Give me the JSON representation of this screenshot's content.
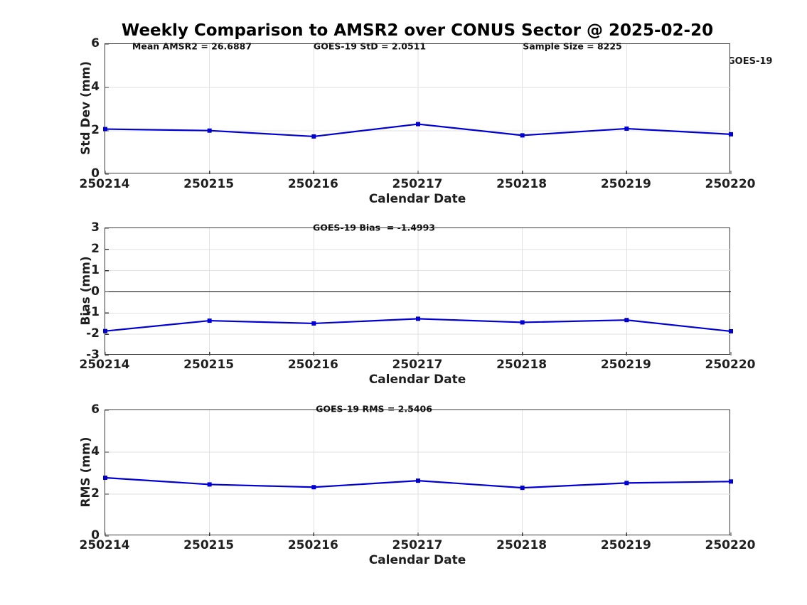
{
  "title": "Weekly Comparison to AMSR2 over CONUS Sector @ 2025-02-20",
  "legend": {
    "label": "GOES-19"
  },
  "colors": {
    "line": "#0000d2",
    "grid": "#e2e2e2",
    "axis": "#3a3a3a",
    "zero_line": "#000000",
    "text": "#1f1f1f"
  },
  "chart_data": [
    {
      "type": "line",
      "title": "",
      "annotations": [
        "Mean AMSR2 = 26.6887",
        "GOES-19 StD = 2.0511",
        "Sample Size = 8225"
      ],
      "xlabel": "Calendar Date",
      "ylabel": "Std Dev (mm)",
      "categories": [
        "250214",
        "250215",
        "250216",
        "250217",
        "250218",
        "250219",
        "250220"
      ],
      "series": [
        {
          "name": "GOES-19",
          "values": [
            2.08,
            2.01,
            1.74,
            2.31,
            1.79,
            2.1,
            1.84
          ]
        }
      ],
      "ylim": [
        0,
        6
      ],
      "yticks": [
        0,
        2,
        4,
        6
      ],
      "grid": true,
      "zero_line": false,
      "legend_position": "top-right",
      "marker": "square"
    },
    {
      "type": "line",
      "title": "",
      "annotations": [
        "GOES-19 Bias  = -1.4993"
      ],
      "xlabel": "Calendar Date",
      "ylabel": "Bias (mm)",
      "categories": [
        "250214",
        "250215",
        "250216",
        "250217",
        "250218",
        "250219",
        "250220"
      ],
      "series": [
        {
          "name": "GOES-19",
          "values": [
            -1.85,
            -1.36,
            -1.49,
            -1.27,
            -1.44,
            -1.33,
            -1.86
          ]
        }
      ],
      "ylim": [
        -3,
        3
      ],
      "yticks": [
        -3,
        -2,
        -1,
        0,
        1,
        2,
        3
      ],
      "grid": true,
      "zero_line": true,
      "marker": "square"
    },
    {
      "type": "line",
      "title": "",
      "annotations": [
        "GOES-19 RMS = 2.5406"
      ],
      "xlabel": "Calendar Date",
      "ylabel": "RMS (mm)",
      "categories": [
        "250214",
        "250215",
        "250216",
        "250217",
        "250218",
        "250219",
        "250220"
      ],
      "series": [
        {
          "name": "GOES-19",
          "values": [
            2.78,
            2.46,
            2.33,
            2.64,
            2.3,
            2.53,
            2.6
          ]
        }
      ],
      "ylim": [
        0,
        6
      ],
      "yticks": [
        0,
        2,
        4,
        6
      ],
      "grid": true,
      "zero_line": false,
      "marker": "square"
    }
  ]
}
